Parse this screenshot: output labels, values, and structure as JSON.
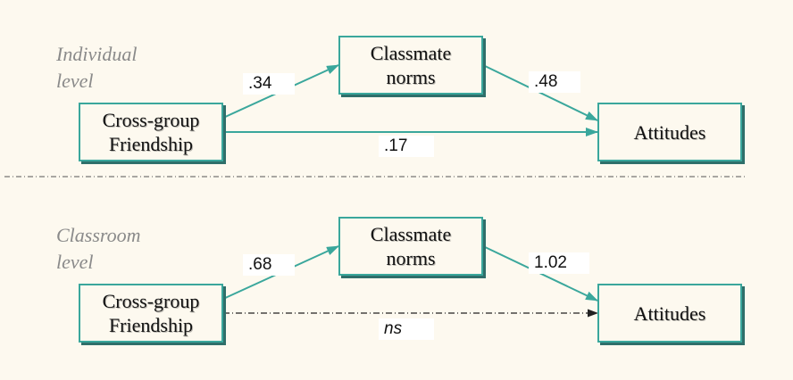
{
  "colors": {
    "arrow": "#3aa79c",
    "box_border": "#3aa79c",
    "box_shadow": "#2f6f6a",
    "background": "#fdf9ef",
    "divider": "#555555"
  },
  "individual": {
    "level_label": "Individual\nlevel",
    "boxes": {
      "friendship": "Cross-group\nFriendship",
      "norms": "Classmate\nnorms",
      "attitudes": "Attitudes"
    },
    "coefficients": {
      "friendship_to_norms": ".34",
      "norms_to_attitudes": ".48",
      "friendship_to_attitudes": ".17"
    }
  },
  "classroom": {
    "level_label": "Classroom\nlevel",
    "boxes": {
      "friendship": "Cross-group\nFriendship",
      "norms": "Classmate\nnorms",
      "attitudes": "Attitudes"
    },
    "coefficients": {
      "friendship_to_norms": ".68",
      "norms_to_attitudes": "1.02",
      "friendship_to_attitudes": "ns"
    }
  }
}
